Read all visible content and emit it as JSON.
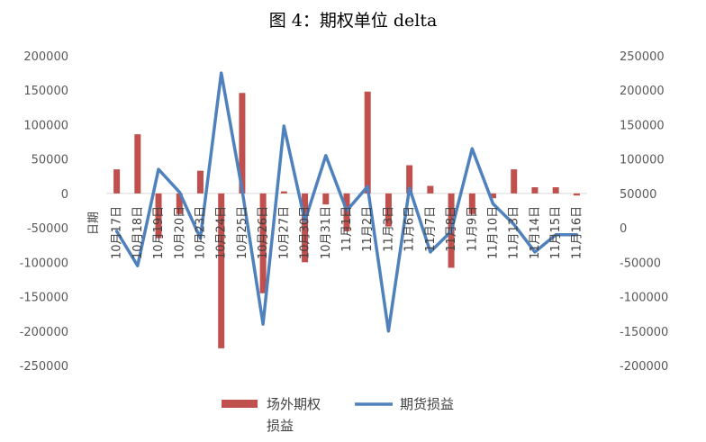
{
  "chart_data": {
    "type": "bar",
    "title": "图 4：期权单位 delta",
    "xlabel": "日期",
    "categories": [
      "10月17日",
      "10月18日",
      "10月19日",
      "10月20日",
      "10月23日",
      "10月24日",
      "10月25日",
      "10月26日",
      "10月27日",
      "10月30日",
      "10月31日",
      "11月1日",
      "11月2日",
      "11月3日",
      "11月6日",
      "11月7日",
      "11月8日",
      "11月9日",
      "11月10日",
      "11月13日",
      "11月14日",
      "11月15日",
      "11月16日"
    ],
    "y_ticks_left": [
      "200000",
      "150000",
      "100000",
      "50000",
      "0",
      "-50000",
      "-100000",
      "-150000",
      "-200000",
      "-250000"
    ],
    "y_ticks_right": [
      "250000",
      "200000",
      "150000",
      "100000",
      "50000",
      "0",
      "-50000",
      "-100000",
      "-150000",
      "-200000"
    ],
    "ylim_left": [
      -250000,
      200000
    ],
    "ylim_right": [
      -200000,
      250000
    ],
    "legend_placement": "bottom",
    "series": [
      {
        "name": "场外期权损益",
        "type": "bar",
        "axis": "left",
        "color": "#c0504d",
        "values": [
          35000,
          86000,
          -65000,
          -30000,
          33000,
          -225000,
          146000,
          -145000,
          3000,
          -100000,
          -16000,
          -55000,
          148000,
          -48000,
          41000,
          11000,
          -108000,
          -30000,
          -7000,
          35000,
          9000,
          9000,
          -3000
        ]
      },
      {
        "name": "期货损益",
        "type": "line",
        "axis": "right",
        "color": "#4f81bd",
        "values": [
          -5000,
          -55000,
          85000,
          52000,
          -15000,
          225000,
          55000,
          -140000,
          148000,
          10000,
          105000,
          25000,
          60000,
          -150000,
          58000,
          -35000,
          -5000,
          115000,
          35000,
          5000,
          -35000,
          -10000,
          -10000
        ]
      }
    ]
  }
}
